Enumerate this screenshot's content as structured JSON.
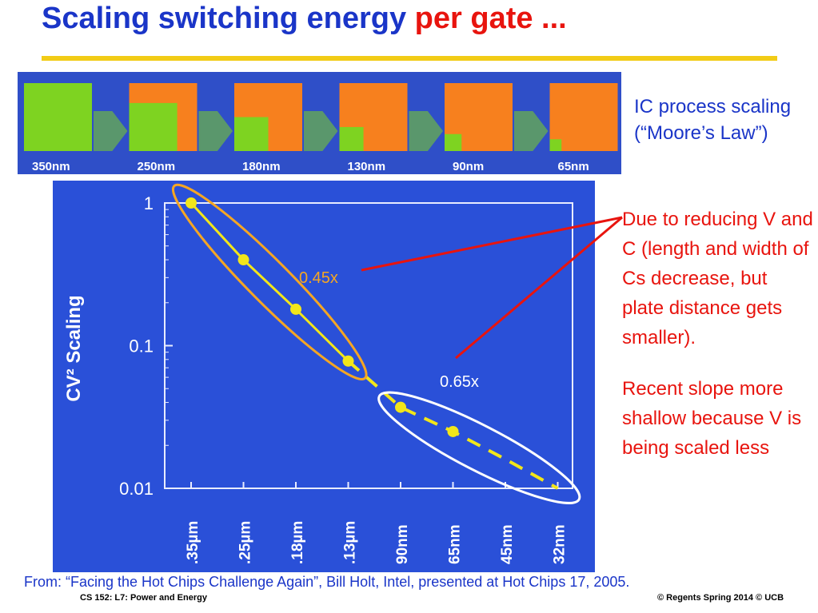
{
  "slide": {
    "title_main": "Scaling switching energy ",
    "title_highlight": "per gate ...",
    "ic_line1": "IC process scaling",
    "ic_line2": "(“Moore’s Law”)",
    "note_para1": "Due to reducing V and C (length and width of Cs   decrease, but  plate distance gets smaller).",
    "note_para2": "Recent slope more shallow because V is being scaled less",
    "source": "From: “Facing the Hot Chips Challenge Again”, Bill Holt, Intel, presented at Hot Chips 17, 2005.",
    "footer_left": "CS 152:  L7: Power and Energy",
    "footer_right": "© Regents Spring 2014 © UCB"
  },
  "process_strip": {
    "nodes": [
      "350nm",
      "250nm",
      "180nm",
      "130nm",
      "90nm",
      "65nm"
    ],
    "relative_area": [
      1.0,
      0.5,
      0.25,
      0.125,
      0.0625,
      0.03
    ]
  },
  "colors": {
    "title_blue": "#1a35c8",
    "highlight_red": "#e8140e",
    "rule_yellow": "#f2cc16",
    "chip_green": "#7ed321",
    "chip_orange": "#f7801e",
    "panel_blue": "#2a50d8",
    "marker_yellow": "#f2e61a",
    "ellipse_orange": "#f5a623",
    "ellipse_white": "#ffffff"
  },
  "chart_data": {
    "type": "line",
    "ylabel": "CV² Scaling",
    "yscale": "log",
    "ylim": [
      0.01,
      1
    ],
    "yticks": [
      "1",
      "0.1",
      "0.01"
    ],
    "categories": [
      ".35µm",
      ".25µm",
      ".18µm",
      ".13µm",
      "90nm",
      "65nm",
      "45nm",
      "32nm"
    ],
    "series": [
      {
        "points": [
          [
            0,
            1.0
          ],
          [
            1,
            0.4
          ],
          [
            2,
            0.18
          ],
          [
            3,
            0.078
          ]
        ]
      },
      {
        "points": [
          [
            4,
            0.037
          ],
          [
            5,
            0.025
          ],
          [
            6,
            0.016
          ],
          [
            7,
            0.01
          ]
        ]
      }
    ],
    "annotations": [
      "0.45x",
      "0.65x"
    ],
    "grid": false
  }
}
